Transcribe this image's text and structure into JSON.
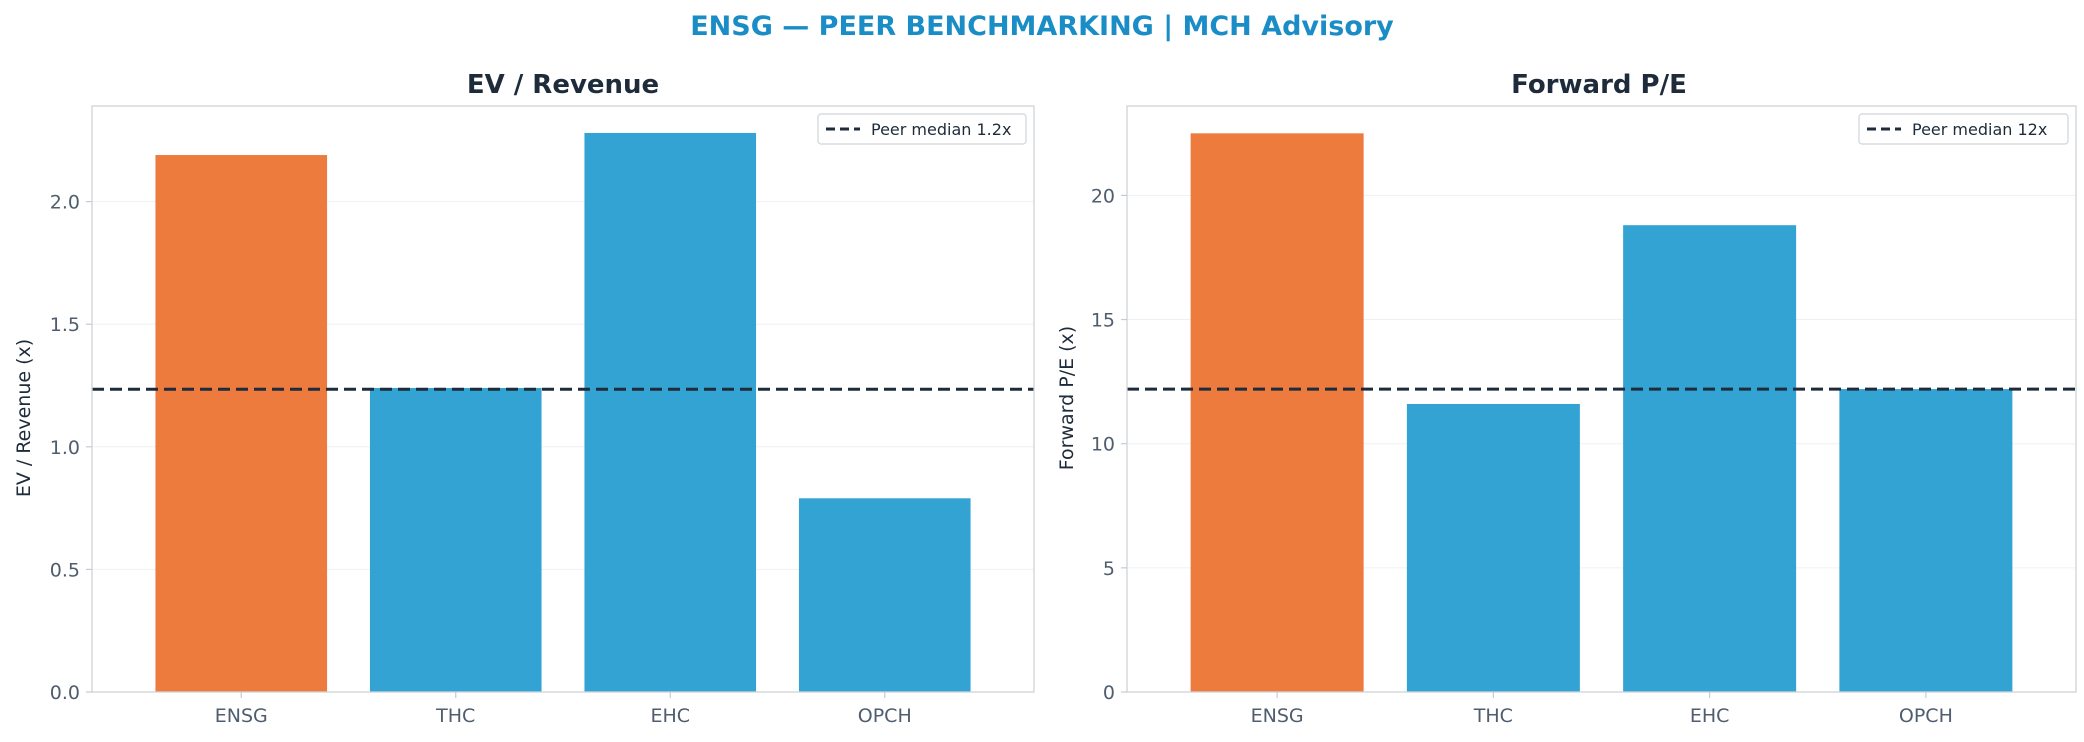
{
  "figure": {
    "suptitle": "ENSG — PEER BENCHMARKING | MCH Advisory"
  },
  "colors": {
    "title": "#1a8cc6",
    "highlight": "#ed7b3e",
    "peer": "#33a3d3",
    "median_line": "#1e2b3a"
  },
  "chart_data": [
    {
      "type": "bar",
      "title": "EV / Revenue",
      "xlabel": "",
      "ylabel": "EV / Revenue (x)",
      "categories": [
        "ENSG",
        "THC",
        "EHC",
        "OPCH"
      ],
      "values": [
        2.19,
        1.24,
        2.28,
        0.79
      ],
      "highlight_index": 0,
      "ylim": [
        0,
        2.39
      ],
      "yticks": [
        0.0,
        0.5,
        1.0,
        1.5,
        2.0
      ],
      "ytick_labels": [
        "0.0",
        "0.5",
        "1.0",
        "1.5",
        "2.0"
      ],
      "reference_line": {
        "value": 1.235,
        "label": "Peer median 1.2x"
      },
      "legend_position": "top-right",
      "grid": true
    },
    {
      "type": "bar",
      "title": "Forward P/E",
      "xlabel": "",
      "ylabel": "Forward P/E (x)",
      "categories": [
        "ENSG",
        "THC",
        "EHC",
        "OPCH"
      ],
      "values": [
        22.5,
        11.6,
        18.8,
        12.2
      ],
      "highlight_index": 0,
      "ylim": [
        0,
        23.6
      ],
      "yticks": [
        0,
        5,
        10,
        15,
        20
      ],
      "ytick_labels": [
        "0",
        "5",
        "10",
        "15",
        "20"
      ],
      "reference_line": {
        "value": 12.2,
        "label": "Peer median 12x"
      },
      "legend_position": "top-right",
      "grid": true
    }
  ]
}
